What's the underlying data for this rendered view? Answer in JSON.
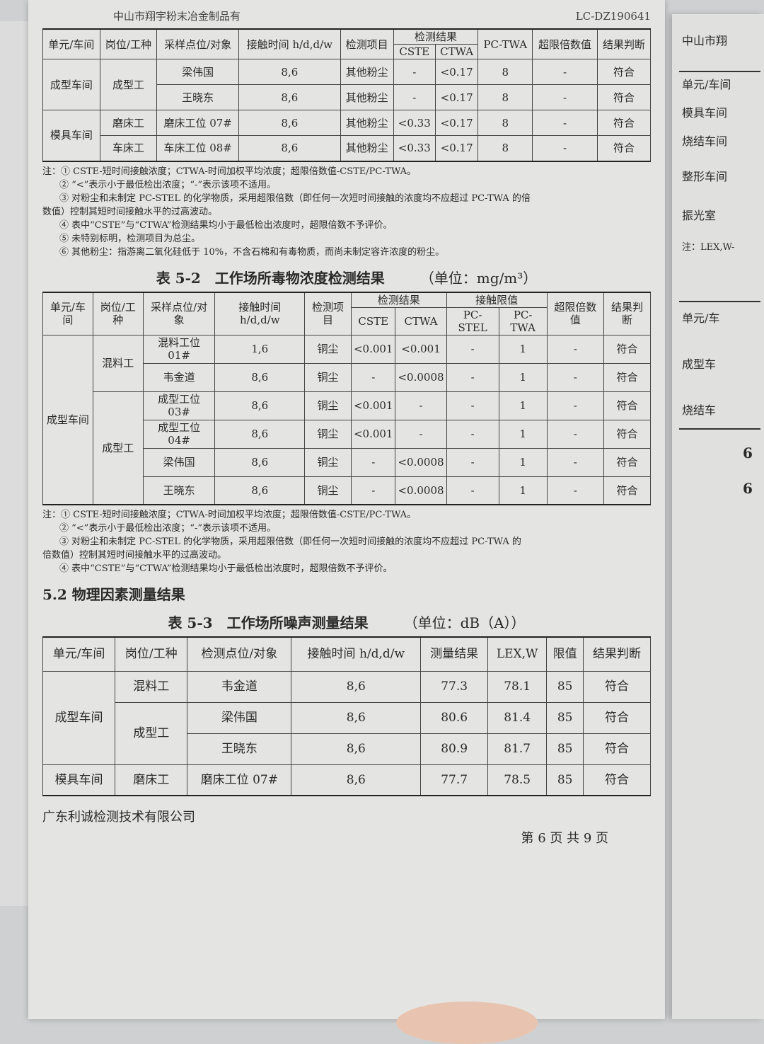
{
  "header": {
    "company": "中山市翔宇粉末冶金制品有",
    "report_no": "LC-DZ190641"
  },
  "table51": {
    "headers": {
      "unit": "单元/车间",
      "post": "岗位/工种",
      "point": "采样点位/对象",
      "time": "接触时间 h/d,d/w",
      "item": "检测项目",
      "result": "检测结果",
      "cste": "CSTE",
      "ctwa": "CTWA",
      "pctwa": "PC-TWA",
      "excess": "超限倍数值",
      "judge": "结果判断"
    },
    "rows": [
      {
        "unit": "成型车间",
        "post": "成型工",
        "point": "梁伟国",
        "time": "8,6",
        "item": "其他粉尘",
        "cste": "-",
        "ctwa": "<0.17",
        "pctwa": "8",
        "excess": "-",
        "judge": "符合"
      },
      {
        "unit": "",
        "post": "",
        "point": "王晓东",
        "time": "8,6",
        "item": "其他粉尘",
        "cste": "-",
        "ctwa": "<0.17",
        "pctwa": "8",
        "excess": "-",
        "judge": "符合"
      },
      {
        "unit": "模具车间",
        "post": "磨床工",
        "point": "磨床工位 07#",
        "time": "8,6",
        "item": "其他粉尘",
        "cste": "<0.33",
        "ctwa": "<0.17",
        "pctwa": "8",
        "excess": "-",
        "judge": "符合"
      },
      {
        "unit": "",
        "post": "车床工",
        "point": "车床工位 08#",
        "time": "8,6",
        "item": "其他粉尘",
        "cste": "<0.33",
        "ctwa": "<0.17",
        "pctwa": "8",
        "excess": "-",
        "judge": "符合"
      }
    ],
    "notes": [
      "注：① CSTE-短时间接触浓度；CTWA-时间加权平均浓度；超限倍数值-CSTE/PC-TWA。",
      "② “<”表示小于最低检出浓度；“-”表示该项不适用。",
      "③ 对粉尘和未制定 PC-STEL 的化学物质，采用超限倍数（即任何一次短时间接触的浓度均不应超过 PC-TWA 的倍",
      "数值）控制其短时间接触水平的过高波动。",
      "④ 表中“CSTE”与“CTWA”检测结果均小于最低检出浓度时，超限倍数不予评价。",
      "⑤ 未特别标明，检测项目为总尘。",
      "⑥ 其他粉尘：指游离二氧化硅低于 10%，不含石棉和有毒物质，而尚未制定容许浓度的粉尘。"
    ]
  },
  "table52": {
    "title": "表 5-2　工作场所毒物浓度检测结果",
    "unit": "（单位：mg/m³）",
    "headers": {
      "unit": "单元/车间",
      "post": "岗位/工种",
      "point": "采样点位/对象",
      "time": "接触时间 h/d,d/w",
      "item": "检测项目",
      "result": "检测结果",
      "limit": "接触限值",
      "cste": "CSTE",
      "ctwa": "CTWA",
      "pcstel": "PC-STEL",
      "pctwa": "PC-TWA",
      "excess": "超限倍数值",
      "judge": "结果判断"
    },
    "workshop": "成型车间",
    "rows": [
      {
        "post": "混料工",
        "point": "混料工位 01#",
        "time": "1,6",
        "item": "铜尘",
        "cste": "<0.001",
        "ctwa": "<0.001",
        "pcstel": "-",
        "pctwa": "1",
        "excess": "-",
        "judge": "符合"
      },
      {
        "post": "",
        "point": "韦金道",
        "time": "8,6",
        "item": "铜尘",
        "cste": "-",
        "ctwa": "<0.0008",
        "pcstel": "-",
        "pctwa": "1",
        "excess": "-",
        "judge": "符合"
      },
      {
        "post": "成型工",
        "point": "成型工位 03#",
        "time": "8,6",
        "item": "铜尘",
        "cste": "<0.001",
        "ctwa": "-",
        "pcstel": "-",
        "pctwa": "1",
        "excess": "-",
        "judge": "符合"
      },
      {
        "post": "",
        "point": "成型工位 04#",
        "time": "8,6",
        "item": "铜尘",
        "cste": "<0.001",
        "ctwa": "-",
        "pcstel": "-",
        "pctwa": "1",
        "excess": "-",
        "judge": "符合"
      },
      {
        "post": "",
        "point": "梁伟国",
        "time": "8,6",
        "item": "铜尘",
        "cste": "-",
        "ctwa": "<0.0008",
        "pcstel": "-",
        "pctwa": "1",
        "excess": "-",
        "judge": "符合"
      },
      {
        "post": "",
        "point": "王晓东",
        "time": "8,6",
        "item": "铜尘",
        "cste": "-",
        "ctwa": "<0.0008",
        "pcstel": "-",
        "pctwa": "1",
        "excess": "-",
        "judge": "符合"
      }
    ],
    "notes": [
      "注：① CSTE-短时间接触浓度；CTWA-时间加权平均浓度；超限倍数值-CSTE/PC-TWA。",
      "② “<”表示小于最低检出浓度；“-”表示该项不适用。",
      "③ 对粉尘和未制定 PC-STEL 的化学物质，采用超限倍数（即任何一次短时间接触的浓度均不应超过 PC-TWA 的",
      "倍数值）控制其短时间接触水平的过高波动。",
      "④ 表中“CSTE”与“CTWA”检测结果均小于最低检出浓度时，超限倍数不予评价。"
    ]
  },
  "section52": "5.2 物理因素测量结果",
  "table53": {
    "title": "表 5-3　工作场所噪声测量结果",
    "unit": "（单位：dB（A））",
    "headers": {
      "unit": "单元/车间",
      "post": "岗位/工种",
      "point": "检测点位/对象",
      "time": "接触时间 h/d,d/w",
      "measure": "测量结果",
      "lex": "LEX,W",
      "limit": "限值",
      "judge": "结果判断"
    },
    "rows": [
      {
        "unit": "成型车间",
        "post": "混料工",
        "point": "韦金道",
        "time": "8,6",
        "measure": "77.3",
        "lex": "78.1",
        "limit": "85",
        "judge": "符合"
      },
      {
        "unit": "",
        "post": "成型工",
        "point": "梁伟国",
        "time": "8,6",
        "measure": "80.6",
        "lex": "81.4",
        "limit": "85",
        "judge": "符合"
      },
      {
        "unit": "",
        "post": "",
        "point": "王晓东",
        "time": "8,6",
        "measure": "80.9",
        "lex": "81.7",
        "limit": "85",
        "judge": "符合"
      },
      {
        "unit": "模具车间",
        "post": "磨床工",
        "point": "磨床工位 07#",
        "time": "8,6",
        "measure": "77.7",
        "lex": "78.5",
        "limit": "85",
        "judge": "符合"
      }
    ]
  },
  "footer": {
    "company": "广东利诚检测技术有限公司",
    "page": "第 6 页 共 9 页"
  },
  "right_page": {
    "header": "中山市翔",
    "items": [
      "单元/车间",
      "模具车间",
      "烧结车间",
      "整形车间",
      "振光室",
      "注：LEX,W-",
      "单元/车",
      "成型车",
      "烧结车",
      "6",
      "6"
    ]
  }
}
